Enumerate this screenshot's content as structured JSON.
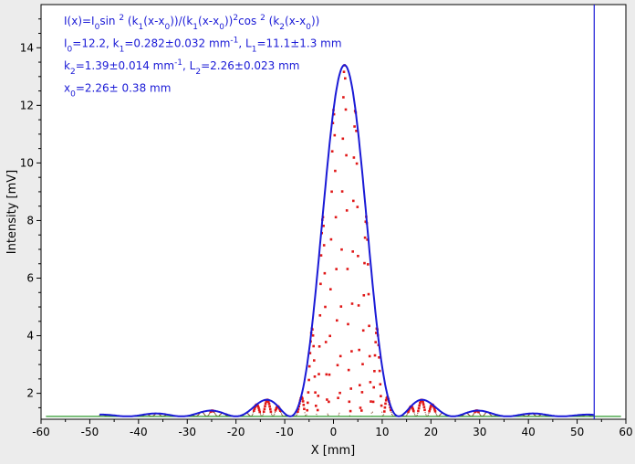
{
  "chart_data": {
    "type": "scatter",
    "title": "",
    "xlabel": "X [mm]",
    "ylabel": "Intensity [mV]",
    "xlim": [
      -60,
      60
    ],
    "ylim": [
      1.1,
      15.5
    ],
    "xticks": [
      -60,
      -50,
      -40,
      -30,
      -20,
      -10,
      0,
      10,
      20,
      30,
      40,
      50,
      60
    ],
    "yticks": [
      2,
      4,
      6,
      8,
      10,
      12,
      14
    ],
    "grid": false,
    "annotations": {
      "formula_lines": [
        {
          "parts": [
            {
              "t": "I(x)=I",
              "s": "n"
            },
            {
              "t": "0",
              "s": "sub"
            },
            {
              "t": "sin ",
              "s": "n"
            },
            {
              "t": "2",
              "s": "sup"
            },
            {
              "t": " (k",
              "s": "n"
            },
            {
              "t": "1",
              "s": "sub"
            },
            {
              "t": "(x-x",
              "s": "n"
            },
            {
              "t": "0",
              "s": "sub"
            },
            {
              "t": "))/(k",
              "s": "n"
            },
            {
              "t": "1",
              "s": "sub"
            },
            {
              "t": "(x-x",
              "s": "n"
            },
            {
              "t": "0",
              "s": "sub"
            },
            {
              "t": "))",
              "s": "n"
            },
            {
              "t": "2",
              "s": "sup"
            },
            {
              "t": "cos ",
              "s": "n"
            },
            {
              "t": "2",
              "s": "sup"
            },
            {
              "t": " (k",
              "s": "n"
            },
            {
              "t": "2",
              "s": "sub"
            },
            {
              "t": "(x-x",
              "s": "n"
            },
            {
              "t": "0",
              "s": "sub"
            },
            {
              "t": "))",
              "s": "n"
            }
          ]
        },
        {
          "parts": [
            {
              "t": "I",
              "s": "n"
            },
            {
              "t": "0",
              "s": "sub"
            },
            {
              "t": "=12.2,  k",
              "s": "n"
            },
            {
              "t": "1",
              "s": "sub"
            },
            {
              "t": "=0.282±0.032 mm",
              "s": "n"
            },
            {
              "t": "-1",
              "s": "sup"
            },
            {
              "t": ",   L",
              "s": "n"
            },
            {
              "t": "1",
              "s": "sub"
            },
            {
              "t": "=11.1±1.3 mm",
              "s": "n"
            }
          ]
        },
        {
          "parts": [
            {
              "t": "k",
              "s": "n"
            },
            {
              "t": "2",
              "s": "sub"
            },
            {
              "t": "=1.39±0.014 mm",
              "s": "n"
            },
            {
              "t": "-1",
              "s": "sup"
            },
            {
              "t": ",   L",
              "s": "n"
            },
            {
              "t": "2",
              "s": "sub"
            },
            {
              "t": "=2.26±0.023 mm",
              "s": "n"
            }
          ]
        },
        {
          "parts": [
            {
              "t": "x",
              "s": "n"
            },
            {
              "t": "0",
              "s": "sub"
            },
            {
              "t": "=2.26±  0.38 mm",
              "s": "n"
            }
          ]
        }
      ]
    },
    "fit": {
      "I0": 12.2,
      "k1": 0.282,
      "k2": 1.39,
      "x0": 2.26,
      "background": 1.2,
      "x_range": [
        -48,
        53.5
      ]
    },
    "vertical_marker": {
      "x": 53.5
    },
    "baseline": {
      "y": 1.2,
      "x_range": [
        -59,
        59
      ]
    },
    "colors": {
      "fit": "#1a1ad6",
      "points": "#e01818",
      "baseline": "#2e9a2e",
      "marker": "#1a1ad6",
      "annotation": "#1a1ad6",
      "axes": "#000000",
      "plot_bg": "#ffffff",
      "page_bg": "#ececec"
    }
  }
}
